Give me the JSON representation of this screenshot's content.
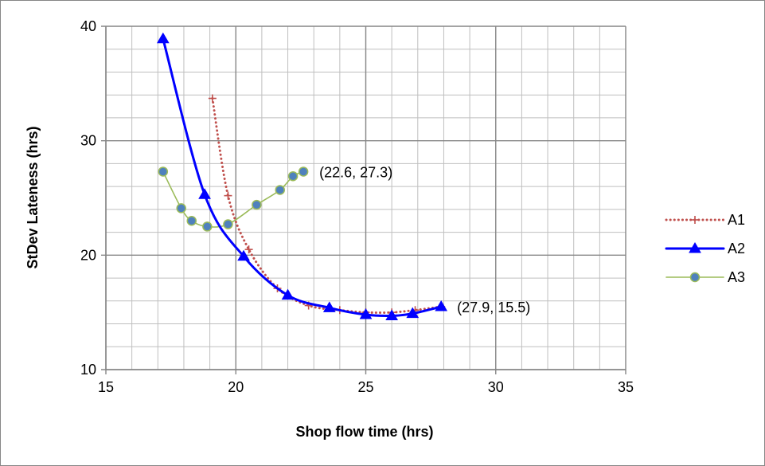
{
  "chart_data": {
    "type": "line",
    "title": "",
    "xlabel": "Shop flow time (hrs)",
    "ylabel": "StDev Lateness (hrs)",
    "xlim": [
      15,
      35
    ],
    "ylim": [
      10,
      40
    ],
    "x_ticks": [
      "15",
      "20",
      "25",
      "30",
      "35"
    ],
    "y_ticks": [
      "10",
      "20",
      "30",
      "40"
    ],
    "x_major_step": 5,
    "x_minor_step": 1,
    "y_major_step": 10,
    "y_minor_step": 2,
    "grid": true,
    "legend_position": "right",
    "series": [
      {
        "name": "A1",
        "color": "#C0504D",
        "line_style": "dotted",
        "marker": "plus",
        "points": [
          [
            19.1,
            33.7
          ],
          [
            19.7,
            25.2
          ],
          [
            20.5,
            20.5
          ],
          [
            21.6,
            17.1
          ],
          [
            22.8,
            15.6
          ],
          [
            24.0,
            15.2
          ],
          [
            25.0,
            15.0
          ],
          [
            26.0,
            15.0
          ],
          [
            26.9,
            15.2
          ],
          [
            27.9,
            15.5
          ]
        ]
      },
      {
        "name": "A2",
        "color": "#0000FF",
        "line_style": "solid",
        "marker": "triangle",
        "points": [
          [
            17.2,
            38.9
          ],
          [
            18.8,
            25.3
          ],
          [
            20.3,
            19.9
          ],
          [
            22.0,
            16.5
          ],
          [
            23.6,
            15.4
          ],
          [
            25.0,
            14.8
          ],
          [
            26.0,
            14.7
          ],
          [
            26.8,
            14.9
          ],
          [
            27.9,
            15.5
          ]
        ]
      },
      {
        "name": "A3",
        "color": "#9BBB59",
        "line_style": "solid",
        "marker": "circle",
        "marker_fill": "#4F81BD",
        "points": [
          [
            17.2,
            27.3
          ],
          [
            17.9,
            24.1
          ],
          [
            18.3,
            23.0
          ],
          [
            18.9,
            22.5
          ],
          [
            19.7,
            22.7
          ],
          [
            20.8,
            24.4
          ],
          [
            21.7,
            25.7
          ],
          [
            22.2,
            26.9
          ],
          [
            22.6,
            27.3
          ]
        ]
      }
    ],
    "annotations": [
      {
        "text": "(22.6, 27.3)",
        "x": 22.6,
        "y": 27.3
      },
      {
        "text": "(27.9, 15.5)",
        "x": 27.9,
        "y": 15.5
      }
    ]
  }
}
